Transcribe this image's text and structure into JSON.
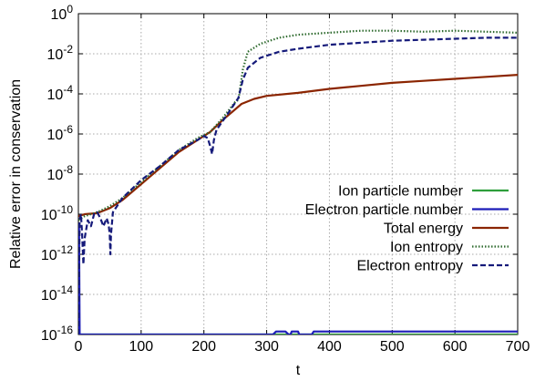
{
  "chart_data": {
    "type": "line",
    "xlabel": "t",
    "ylabel": "Relative error in conservation",
    "xlim": [
      0,
      700
    ],
    "ylim_log10": [
      -16,
      0
    ],
    "y_scale": "log",
    "grid": true,
    "legend_position": "center-right",
    "x_ticks": [
      {
        "value": 0,
        "label": "0"
      },
      {
        "value": 100,
        "label": "100"
      },
      {
        "value": 200,
        "label": "200"
      },
      {
        "value": 300,
        "label": "300"
      },
      {
        "value": 400,
        "label": "400"
      },
      {
        "value": 500,
        "label": "500"
      },
      {
        "value": 600,
        "label": "600"
      },
      {
        "value": 700,
        "label": "700"
      }
    ],
    "y_ticks": [
      {
        "exp": 0,
        "base": "10",
        "sup": "0"
      },
      {
        "exp": -2,
        "base": "10",
        "sup": "-2"
      },
      {
        "exp": -4,
        "base": "10",
        "sup": "-4"
      },
      {
        "exp": -6,
        "base": "10",
        "sup": "-6"
      },
      {
        "exp": -8,
        "base": "10",
        "sup": "-8"
      },
      {
        "exp": -10,
        "base": "10",
        "sup": "-10"
      },
      {
        "exp": -12,
        "base": "10",
        "sup": "-12"
      },
      {
        "exp": -14,
        "base": "10",
        "sup": "-14"
      },
      {
        "exp": -16,
        "base": "10",
        "sup": "-16"
      }
    ],
    "series": [
      {
        "name": "Ion particle number",
        "color": "#2e9e3c",
        "style": "solid",
        "points_log10": [
          [
            0,
            -16
          ],
          [
            700,
            -16
          ]
        ]
      },
      {
        "name": "Electron particle number",
        "color": "#1c1cb8",
        "style": "solid",
        "points_log10": [
          [
            0,
            -16
          ],
          [
            1,
            -10.5
          ],
          [
            2,
            -16
          ],
          [
            310,
            -16
          ],
          [
            315,
            -15.85
          ],
          [
            330,
            -15.85
          ],
          [
            335,
            -16
          ],
          [
            338,
            -16
          ],
          [
            340,
            -15.85
          ],
          [
            350,
            -15.85
          ],
          [
            352,
            -16
          ],
          [
            372,
            -16
          ],
          [
            375,
            -15.85
          ],
          [
            700,
            -15.85
          ]
        ]
      },
      {
        "name": "Total energy",
        "color": "#8b2500",
        "style": "solid",
        "points_log10": [
          [
            0,
            -10.1
          ],
          [
            10,
            -10.0
          ],
          [
            30,
            -9.95
          ],
          [
            50,
            -9.7
          ],
          [
            70,
            -9.3
          ],
          [
            100,
            -8.5
          ],
          [
            130,
            -7.7
          ],
          [
            160,
            -6.9
          ],
          [
            190,
            -6.3
          ],
          [
            210,
            -5.9
          ],
          [
            230,
            -5.3
          ],
          [
            260,
            -4.5
          ],
          [
            280,
            -4.25
          ],
          [
            300,
            -4.1
          ],
          [
            350,
            -3.95
          ],
          [
            400,
            -3.75
          ],
          [
            450,
            -3.6
          ],
          [
            500,
            -3.45
          ],
          [
            550,
            -3.35
          ],
          [
            600,
            -3.25
          ],
          [
            650,
            -3.15
          ],
          [
            700,
            -3.05
          ]
        ]
      },
      {
        "name": "Ion entropy",
        "color": "#2f6b2f",
        "style": "dotted",
        "points_log10": [
          [
            0,
            -10.3
          ],
          [
            10,
            -10.1
          ],
          [
            30,
            -9.9
          ],
          [
            50,
            -9.6
          ],
          [
            70,
            -9.2
          ],
          [
            100,
            -8.4
          ],
          [
            130,
            -7.6
          ],
          [
            160,
            -6.8
          ],
          [
            190,
            -6.2
          ],
          [
            210,
            -5.9
          ],
          [
            230,
            -5.2
          ],
          [
            250,
            -4.4
          ],
          [
            255,
            -4.3
          ],
          [
            262,
            -2.8
          ],
          [
            270,
            -1.9
          ],
          [
            290,
            -1.5
          ],
          [
            320,
            -1.2
          ],
          [
            350,
            -1.05
          ],
          [
            400,
            -0.95
          ],
          [
            450,
            -0.85
          ],
          [
            500,
            -0.85
          ],
          [
            550,
            -0.9
          ],
          [
            600,
            -0.85
          ],
          [
            650,
            -0.9
          ],
          [
            700,
            -0.95
          ]
        ]
      },
      {
        "name": "Electron entropy",
        "color": "#151a7a",
        "style": "dashed",
        "points_log10": [
          [
            0,
            -16
          ],
          [
            2,
            -10.3
          ],
          [
            4,
            -10.0
          ],
          [
            6,
            -11.0
          ],
          [
            8,
            -12.5
          ],
          [
            10,
            -11.2
          ],
          [
            15,
            -10.3
          ],
          [
            20,
            -10.6
          ],
          [
            25,
            -10.0
          ],
          [
            30,
            -9.9
          ],
          [
            35,
            -10.2
          ],
          [
            40,
            -10.6
          ],
          [
            45,
            -10.2
          ],
          [
            48,
            -10.5
          ],
          [
            50,
            -11.0
          ],
          [
            51,
            -12.0
          ],
          [
            52,
            -11.0
          ],
          [
            55,
            -9.9
          ],
          [
            70,
            -9.2
          ],
          [
            100,
            -8.3
          ],
          [
            130,
            -7.6
          ],
          [
            160,
            -6.8
          ],
          [
            190,
            -6.3
          ],
          [
            200,
            -6.1
          ],
          [
            206,
            -6.2
          ],
          [
            210,
            -6.6
          ],
          [
            213,
            -7.0
          ],
          [
            216,
            -6.3
          ],
          [
            220,
            -5.8
          ],
          [
            240,
            -4.9
          ],
          [
            255,
            -4.2
          ],
          [
            262,
            -3.3
          ],
          [
            270,
            -2.7
          ],
          [
            290,
            -2.2
          ],
          [
            320,
            -1.9
          ],
          [
            350,
            -1.75
          ],
          [
            400,
            -1.55
          ],
          [
            450,
            -1.45
          ],
          [
            500,
            -1.35
          ],
          [
            550,
            -1.3
          ],
          [
            600,
            -1.25
          ],
          [
            650,
            -1.2
          ],
          [
            700,
            -1.2
          ]
        ]
      }
    ]
  }
}
